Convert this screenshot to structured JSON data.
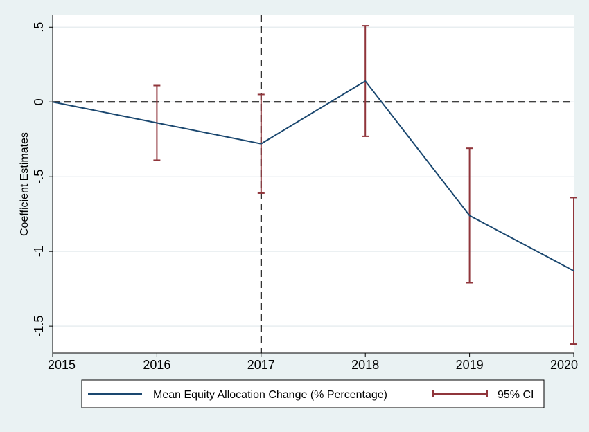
{
  "colors": {
    "background": "#eaf2f3",
    "plot_area": "#ffffff",
    "gridline": "#e8eef0",
    "line": "#1a476f",
    "ci": "#90353b",
    "reference": "#000000"
  },
  "chart_data": {
    "type": "line",
    "title": "",
    "xlabel": "",
    "ylabel": "Coefficient Estimates",
    "x": [
      2015,
      2016,
      2017,
      2018,
      2019,
      2020
    ],
    "xlim": [
      2015,
      2020
    ],
    "ylim": [
      -1.68,
      0.58
    ],
    "x_ticks": [
      "2015",
      "2016",
      "2017",
      "2018",
      "2019",
      "2020"
    ],
    "y_ticks": [
      {
        "value": 0.5,
        "label": ".5"
      },
      {
        "value": 0,
        "label": "0"
      },
      {
        "value": -0.5,
        "label": "-.5"
      },
      {
        "value": -1,
        "label": "-1"
      },
      {
        "value": -1.5,
        "label": "-1.5"
      }
    ],
    "grid": true,
    "series": [
      {
        "name": "Mean Equity Allocation Change (% Percentage)",
        "values": [
          0,
          -0.14,
          -0.28,
          0.14,
          -0.76,
          -1.13
        ]
      }
    ],
    "ci": {
      "name": "95% CI",
      "x": [
        2016,
        2017,
        2018,
        2019,
        2020
      ],
      "lower": [
        -0.39,
        -0.61,
        -0.23,
        -1.21,
        -1.62
      ],
      "upper": [
        0.11,
        0.05,
        0.51,
        -0.31,
        -0.64
      ]
    },
    "reference_lines": {
      "y": 0,
      "x": 2017
    },
    "legend_position": "bottom"
  }
}
